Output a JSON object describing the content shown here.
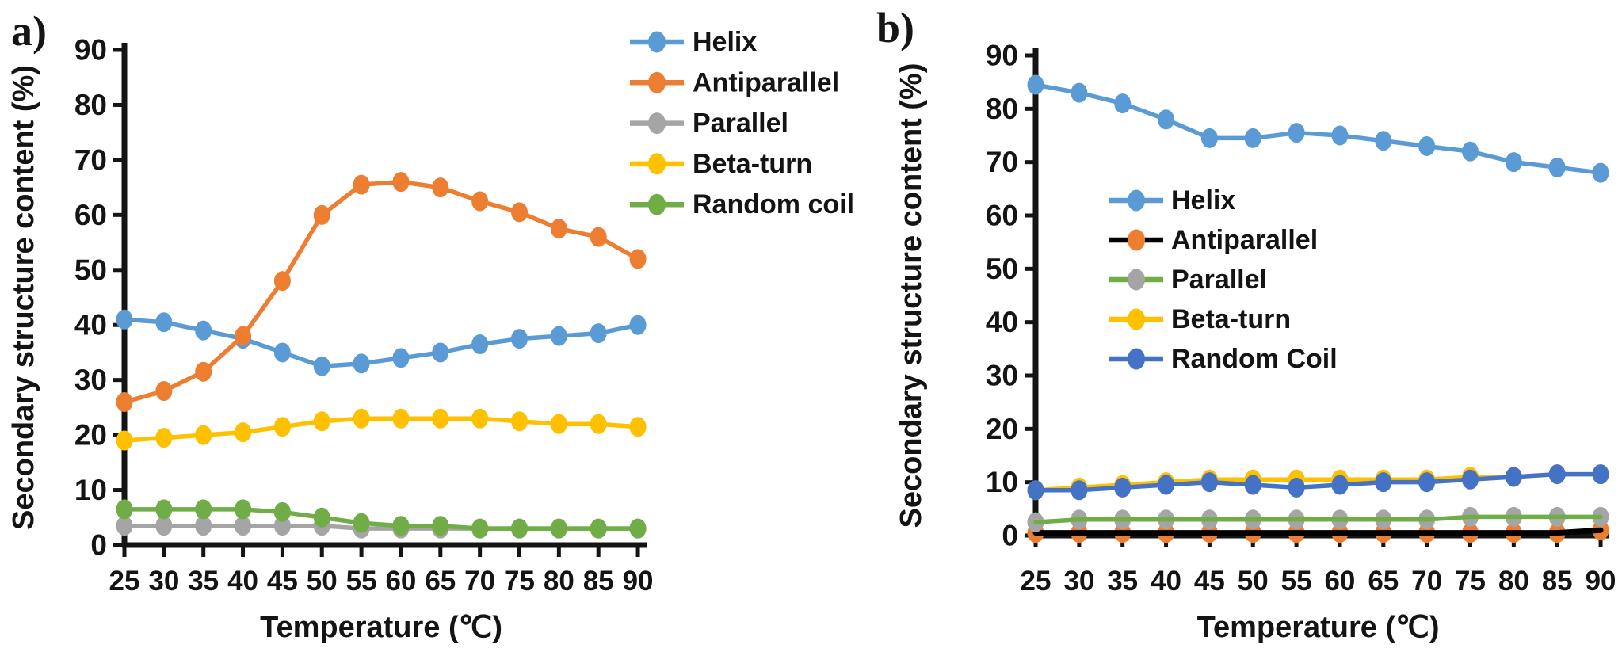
{
  "figure": {
    "background": "#ffffff",
    "panel_a_label": "a)",
    "panel_b_label": "b)"
  },
  "chart_data": [
    {
      "id": "panel-a",
      "type": "line",
      "panel_label": "a)",
      "x": [
        25,
        30,
        35,
        40,
        45,
        50,
        55,
        60,
        65,
        70,
        75,
        80,
        85,
        90
      ],
      "xlabel": "Temperature (℃)",
      "ylabel": "Secondary structure content (%)",
      "ylim": [
        0,
        90
      ],
      "ytick_step": 10,
      "grid": false,
      "legend_position": "outside-top-right",
      "axis_color": "#141414",
      "series": [
        {
          "name": "Helix",
          "line_color": "#5B9BD5",
          "marker_color": "#5B9BD5",
          "line_over_markers": false,
          "values": [
            41,
            40.5,
            39,
            37.5,
            35,
            32.5,
            33,
            34,
            35,
            36.5,
            37.5,
            38,
            38.5,
            40
          ]
        },
        {
          "name": "Antiparallel",
          "line_color": "#ED7D31",
          "marker_color": "#ED7D31",
          "line_over_markers": false,
          "values": [
            26,
            28,
            31.5,
            38,
            48,
            60,
            65.5,
            66,
            65,
            62.5,
            60.5,
            57.5,
            56,
            52
          ]
        },
        {
          "name": "Parallel",
          "line_color": "#A5A5A5",
          "marker_color": "#A5A5A5",
          "line_over_markers": false,
          "values": [
            3.5,
            3.5,
            3.5,
            3.5,
            3.5,
            3.5,
            3,
            3,
            3,
            3,
            3,
            3,
            3,
            3
          ]
        },
        {
          "name": "Beta-turn",
          "line_color": "#FFC000",
          "marker_color": "#FFC000",
          "line_over_markers": false,
          "values": [
            19,
            19.5,
            20,
            20.5,
            21.5,
            22.5,
            23,
            23,
            23,
            23,
            22.5,
            22,
            22,
            21.5
          ]
        },
        {
          "name": "Random coil",
          "line_color": "#70AD47",
          "marker_color": "#70AD47",
          "line_over_markers": false,
          "values": [
            6.5,
            6.5,
            6.5,
            6.5,
            6,
            5,
            4,
            3.5,
            3.5,
            3,
            3,
            3,
            3,
            3
          ]
        }
      ],
      "draw_order": [
        "Parallel",
        "Random coil",
        "Beta-turn",
        "Helix",
        "Antiparallel"
      ]
    },
    {
      "id": "panel-b",
      "type": "line",
      "panel_label": "b)",
      "x": [
        25,
        30,
        35,
        40,
        45,
        50,
        55,
        60,
        65,
        70,
        75,
        80,
        85,
        90
      ],
      "xlabel": "Temperature (℃)",
      "ylabel": "Secondary structure content (%)",
      "ylim": [
        0,
        90
      ],
      "ytick_step": 10,
      "grid": false,
      "legend_position": "inside-middle-left",
      "axis_color": "#141414",
      "series": [
        {
          "name": "Helix",
          "line_color": "#5B9BD5",
          "marker_color": "#5B9BD5",
          "line_over_markers": false,
          "values": [
            84.5,
            83,
            81,
            78,
            74.5,
            74.5,
            75.5,
            75,
            74,
            73,
            72,
            70,
            69,
            68
          ]
        },
        {
          "name": "Antiparallel",
          "line_color": "#000000",
          "marker_color": "#ED7D31",
          "line_over_markers": true,
          "values": [
            0.5,
            0.5,
            0.5,
            0.5,
            0.5,
            0.5,
            0.5,
            0.5,
            0.5,
            0.5,
            0.5,
            0.5,
            0.5,
            1
          ]
        },
        {
          "name": "Parallel",
          "line_color": "#70AD47",
          "marker_color": "#A5A5A5",
          "line_over_markers": true,
          "values": [
            2.5,
            3,
            3,
            3,
            3,
            3,
            3,
            3,
            3,
            3,
            3.5,
            3.5,
            3.5,
            3.5
          ]
        },
        {
          "name": "Beta-turn",
          "line_color": "#FFC000",
          "marker_color": "#FFC000",
          "line_over_markers": false,
          "values": [
            8.5,
            9,
            9.5,
            10,
            10.5,
            10.5,
            10.5,
            10.5,
            10.5,
            10.5,
            11,
            11,
            11.5,
            11.5
          ]
        },
        {
          "name": "Random Coil",
          "line_color": "#4472C4",
          "marker_color": "#4472C4",
          "line_over_markers": false,
          "values": [
            8.5,
            8.5,
            9,
            9.5,
            10,
            9.5,
            9,
            9.5,
            10,
            10,
            10.5,
            11,
            11.5,
            11.5
          ]
        }
      ],
      "draw_order": [
        "Antiparallel",
        "Parallel",
        "Beta-turn",
        "Random Coil",
        "Helix"
      ]
    }
  ]
}
